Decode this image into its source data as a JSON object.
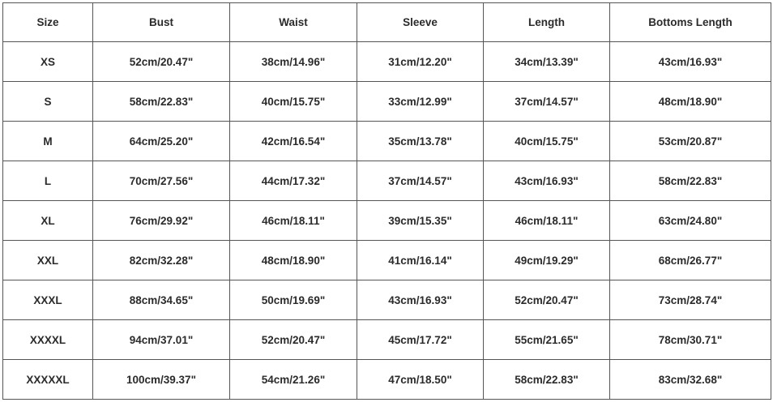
{
  "table": {
    "headers": [
      "Size",
      "Bust",
      "Waist",
      "Sleeve",
      "Length",
      "Bottoms Length"
    ],
    "rows": [
      [
        "XS",
        "52cm/20.47\"",
        "38cm/14.96\"",
        "31cm/12.20\"",
        "34cm/13.39\"",
        "43cm/16.93\""
      ],
      [
        "S",
        "58cm/22.83\"",
        "40cm/15.75\"",
        "33cm/12.99\"",
        "37cm/14.57\"",
        "48cm/18.90\""
      ],
      [
        "M",
        "64cm/25.20\"",
        "42cm/16.54\"",
        "35cm/13.78\"",
        "40cm/15.75\"",
        "53cm/20.87\""
      ],
      [
        "L",
        "70cm/27.56\"",
        "44cm/17.32\"",
        "37cm/14.57\"",
        "43cm/16.93\"",
        "58cm/22.83\""
      ],
      [
        "XL",
        "76cm/29.92\"",
        "46cm/18.11\"",
        "39cm/15.35\"",
        "46cm/18.11\"",
        "63cm/24.80\""
      ],
      [
        "XXL",
        "82cm/32.28\"",
        "48cm/18.90\"",
        "41cm/16.14\"",
        "49cm/19.29\"",
        "68cm/26.77\""
      ],
      [
        "XXXL",
        "88cm/34.65\"",
        "50cm/19.69\"",
        "43cm/16.93\"",
        "52cm/20.47\"",
        "73cm/28.74\""
      ],
      [
        "XXXXL",
        "94cm/37.01\"",
        "52cm/20.47\"",
        "45cm/17.72\"",
        "55cm/21.65\"",
        "78cm/30.71\""
      ],
      [
        "XXXXXL",
        "100cm/39.37\"",
        "54cm/21.26\"",
        "47cm/18.50\"",
        "58cm/22.83\"",
        "83cm/32.68\""
      ]
    ]
  }
}
